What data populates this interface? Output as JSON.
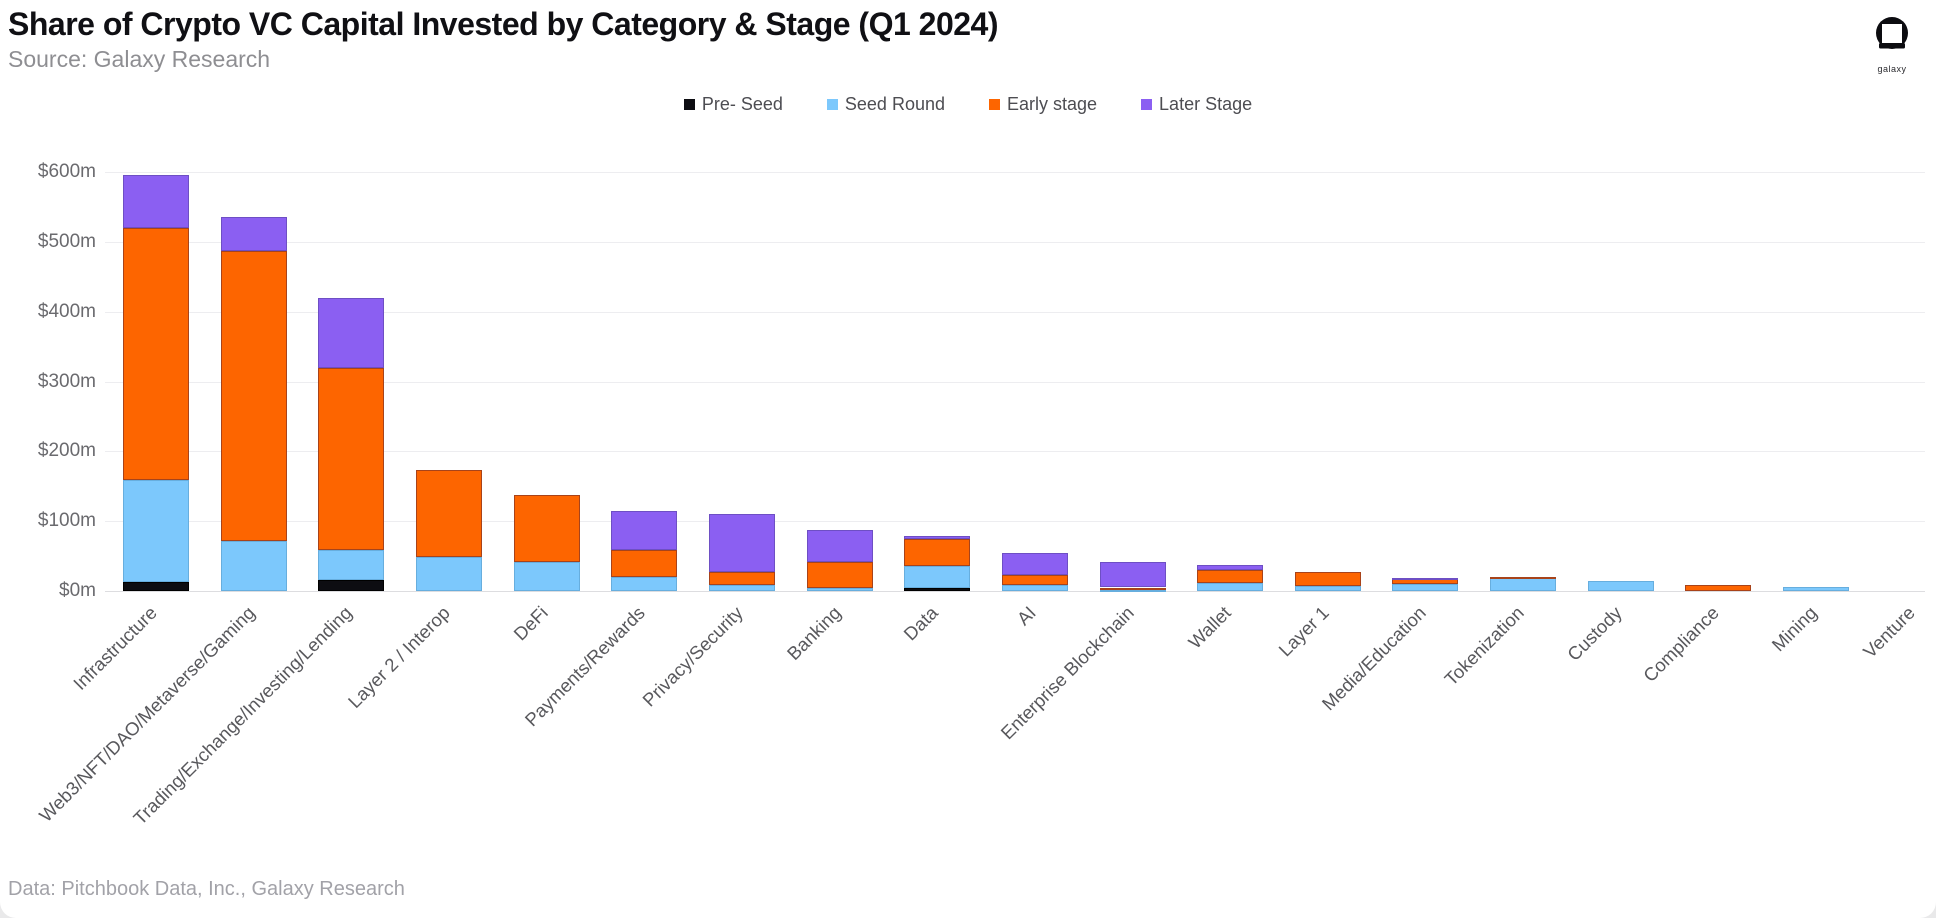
{
  "header": {
    "title": "Share of Crypto VC Capital Invested by Category & Stage (Q1 2024)",
    "subtitle": "Source: Galaxy Research"
  },
  "logo": {
    "label": "galaxy"
  },
  "footer": {
    "caption": "Data: Pitchbook Data, Inc., Galaxy Research"
  },
  "chart_data": {
    "type": "bar",
    "stacked": true,
    "title": "Share of Crypto VC Capital Invested by Category & Stage (Q1 2024)",
    "units": "USD millions",
    "grid": "horizontal",
    "legend_position": "top-center",
    "ylim": [
      0,
      600
    ],
    "y_ticks": [
      "$0m",
      "$100m",
      "$200m",
      "$300m",
      "$400m",
      "$500m",
      "$600m"
    ],
    "y_tick_values": [
      0,
      100,
      200,
      300,
      400,
      500,
      600
    ],
    "categories": [
      "Infrastructure",
      "Web3/NFT/DAO/Metaverse/Gaming",
      "Trading/Exchange/Investing/Lending",
      "Layer 2 / Interop",
      "DeFi",
      "Payments/Rewards",
      "Privacy/Security",
      "Banking",
      "Data",
      "AI",
      "Enterprise Blockchain",
      "Wallet",
      "Layer 1",
      "Media/Education",
      "Tokenization",
      "Custody",
      "Compliance",
      "Mining",
      "Venture"
    ],
    "series": [
      {
        "name": "Pre- Seed",
        "color": "#0d0d12",
        "values": [
          13,
          0,
          16,
          0,
          0,
          0,
          0,
          0,
          5,
          0,
          0,
          0,
          0,
          0,
          0,
          0,
          0,
          0,
          0
        ]
      },
      {
        "name": "Seed Round",
        "color": "#7cc8fc",
        "values": [
          146,
          72,
          43,
          49,
          42,
          20,
          8,
          4,
          31,
          9,
          2,
          12,
          7,
          10,
          18,
          15,
          0,
          6,
          0
        ]
      },
      {
        "name": "Early stage",
        "color": "#fd6500",
        "values": [
          361,
          415,
          261,
          124,
          95,
          38,
          19,
          38,
          38,
          14,
          3,
          18,
          20,
          7,
          2,
          0,
          8,
          0,
          0
        ]
      },
      {
        "name": "Later Stage",
        "color": "#8b5ff2",
        "values": [
          75,
          48,
          100,
          0,
          0,
          57,
          83,
          46,
          5,
          32,
          37,
          7,
          0,
          2,
          0,
          0,
          0,
          0,
          0
        ]
      }
    ]
  }
}
